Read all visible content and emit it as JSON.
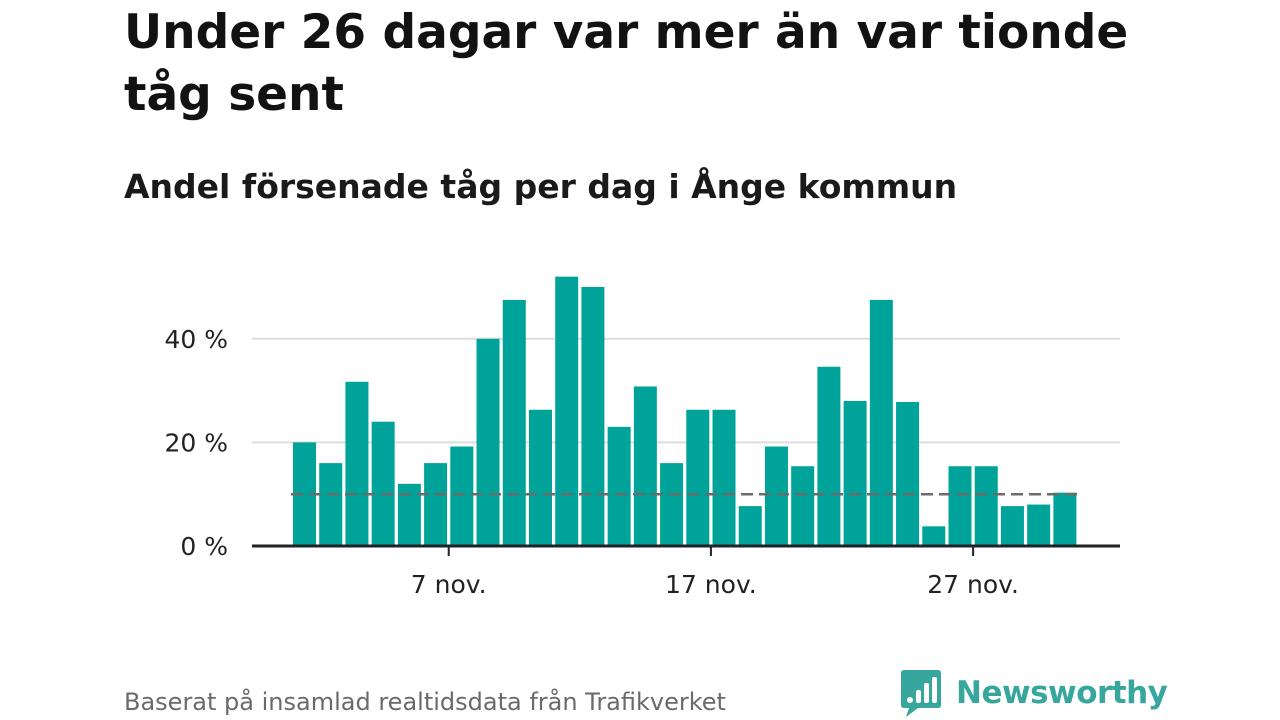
{
  "header": {
    "title": "Under 26 dagar var mer än var tionde tåg sent",
    "subtitle": "Andel försenade tåg per dag i Ånge kommun"
  },
  "footer": {
    "source": "Baserat på insamlad realtidsdata från Trafikverket",
    "brand": "Newsworthy"
  },
  "colors": {
    "bar": "#00a39a",
    "reference_line": "#6b6b6b",
    "grid": "#dddddd",
    "axis": "#222222",
    "brand": "#37a69d"
  },
  "chart_data": {
    "type": "bar",
    "x": [
      "1 nov.",
      "2 nov.",
      "3 nov.",
      "4 nov.",
      "5 nov.",
      "6 nov.",
      "7 nov.",
      "8 nov.",
      "9 nov.",
      "10 nov.",
      "11 nov.",
      "12 nov.",
      "13 nov.",
      "14 nov.",
      "15 nov.",
      "16 nov.",
      "17 nov.",
      "18 nov.",
      "19 nov.",
      "20 nov.",
      "21 nov.",
      "22 nov.",
      "23 nov.",
      "24 nov.",
      "25 nov.",
      "26 nov.",
      "27 nov.",
      "28 nov.",
      "29 nov.",
      "30 nov."
    ],
    "values": [
      20,
      16,
      31.7,
      24,
      12,
      16,
      19.2,
      40,
      47.5,
      26.3,
      52,
      50,
      23,
      30.8,
      16,
      26.3,
      26.3,
      7.7,
      19.2,
      15.4,
      34.6,
      28,
      47.5,
      27.8,
      3.8,
      15.4,
      15.4,
      7.7,
      8,
      10.3
    ],
    "reference_line": 10,
    "ylim": [
      0,
      55
    ],
    "y_ticks": [
      0,
      20,
      40
    ],
    "y_tick_labels": [
      "0 %",
      "20 %",
      "40 %"
    ],
    "x_ticks": [
      "7 nov.",
      "17 nov.",
      "27 nov."
    ],
    "grid": true,
    "xlabel": "",
    "ylabel": ""
  }
}
